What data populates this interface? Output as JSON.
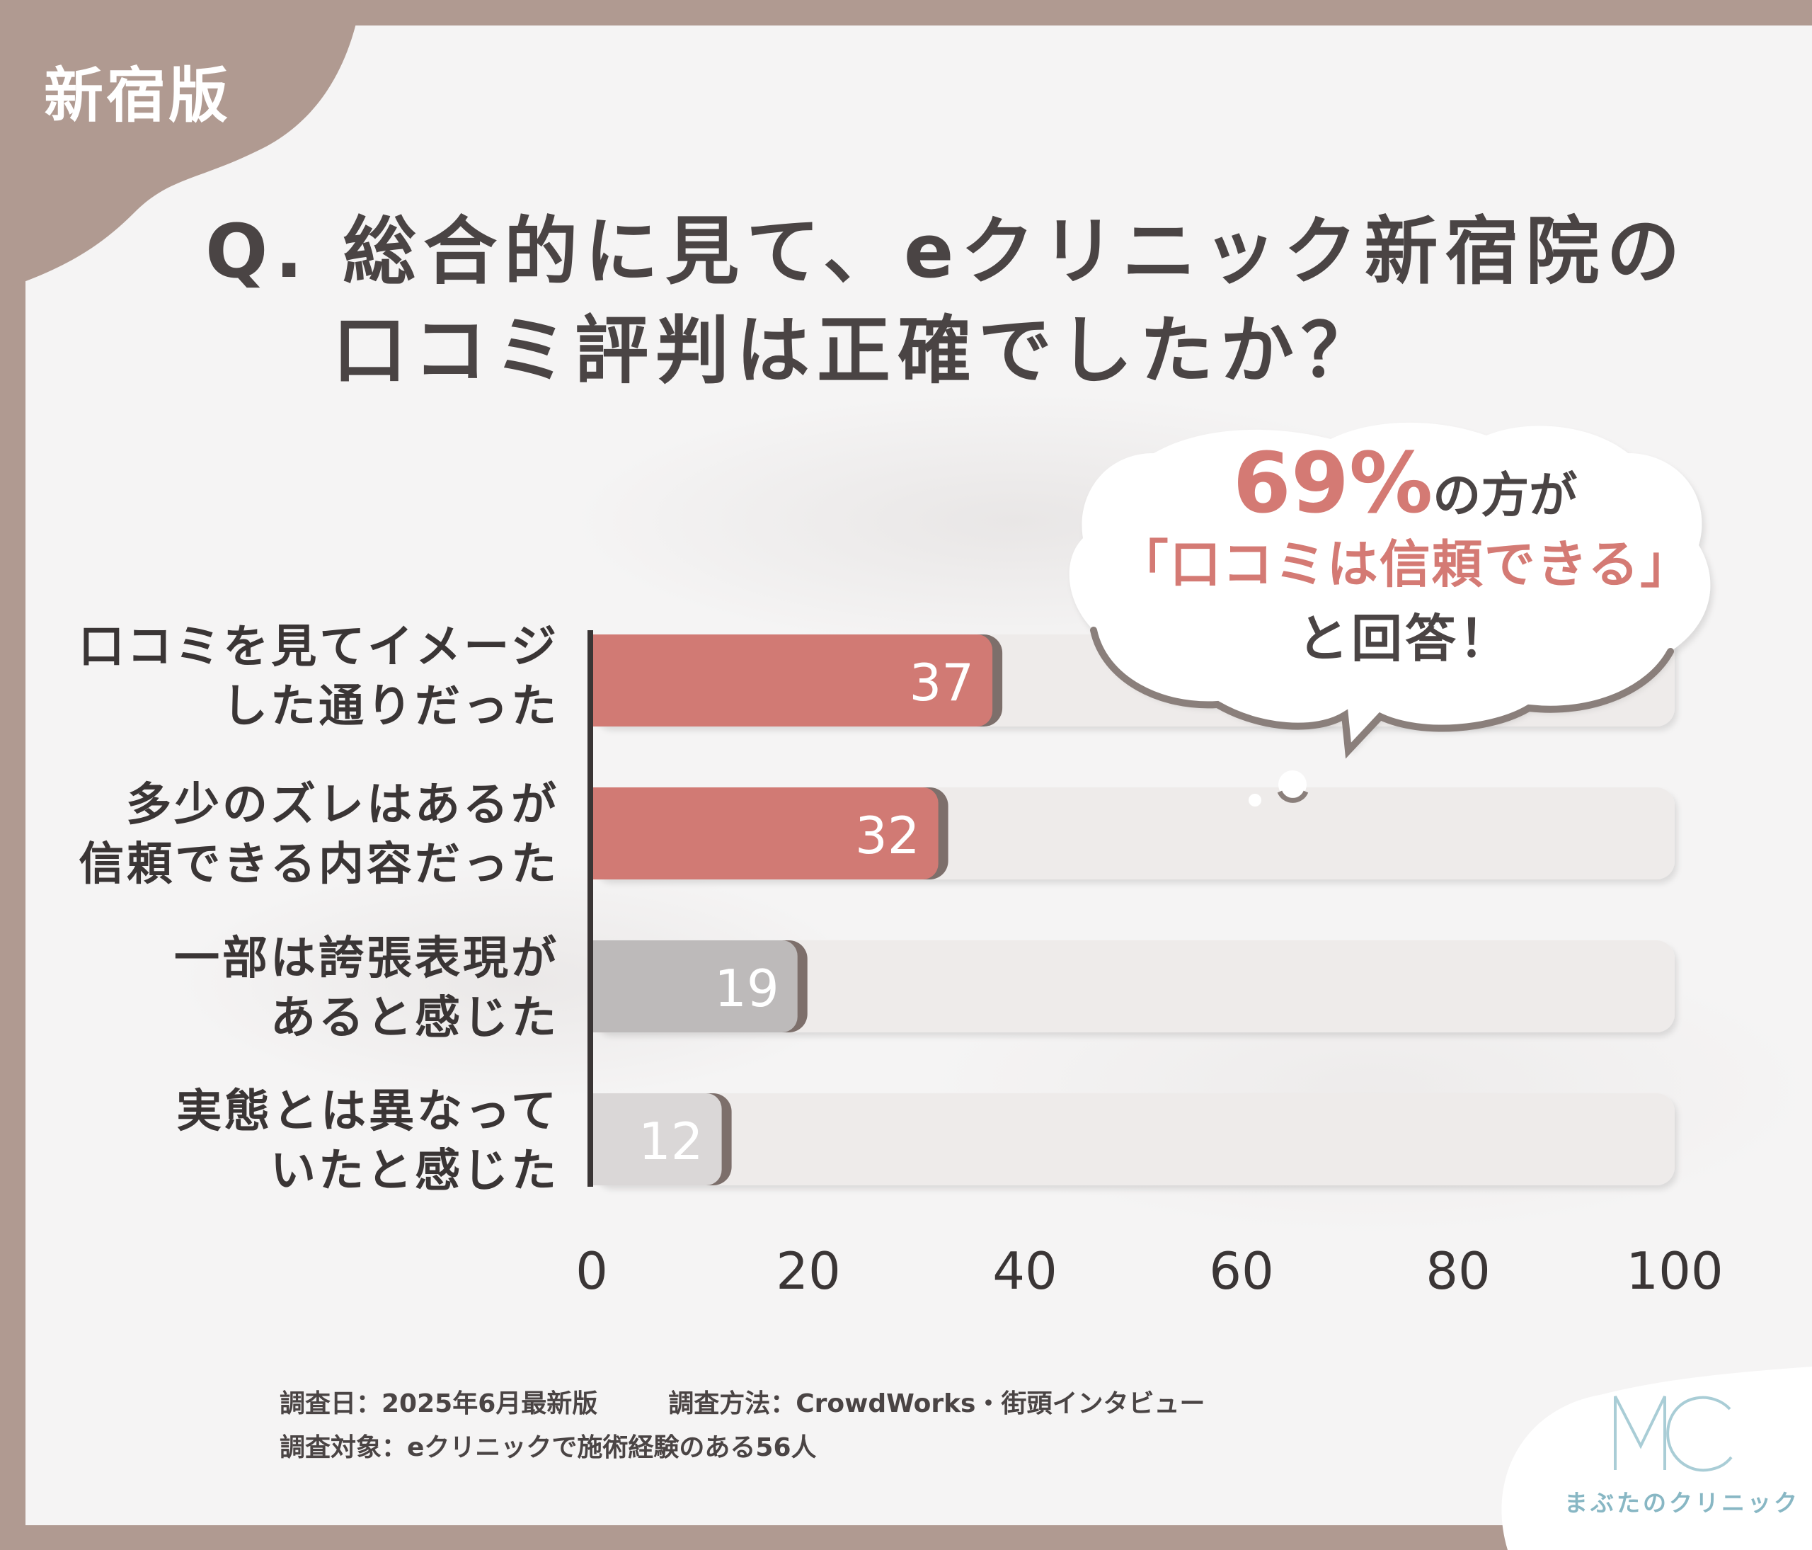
{
  "edition_tag": "新宿版",
  "title": {
    "line1": "Q. 総合的に見て、eクリニック新宿院の",
    "line2": "口コミ評判は正確でしたか？"
  },
  "colors": {
    "frame": "#b09a91",
    "card": "#f5f4f4",
    "bar_highlight": "#d17a74",
    "bar_gray": "#bdbaba",
    "bar_light_gray": "#dad7d7",
    "track": "#eeebea",
    "accent_text": "#d47a74"
  },
  "callout": {
    "percent": "69%",
    "line1_suffix": "の方が",
    "line2": "「口コミは信頼できる」",
    "line3": "と回答！"
  },
  "chart_data": {
    "type": "bar",
    "orientation": "horizontal",
    "categories": [
      [
        "口コミを見てイメージ",
        "した通りだった"
      ],
      [
        "多少のズレはあるが",
        "信頼できる内容だった"
      ],
      [
        "一部は誇張表現が",
        "あると感じた"
      ],
      [
        "実態とは異なって",
        "いたと感じた"
      ]
    ],
    "values": [
      37,
      32,
      19,
      12
    ],
    "value_labels": [
      "37",
      "32",
      "19",
      "12"
    ],
    "bar_colors": [
      "#d17a74",
      "#d17a74",
      "#bdbaba",
      "#dad7d7"
    ],
    "xlim": [
      0,
      100
    ],
    "xticks": [
      0,
      20,
      40,
      60,
      80,
      100
    ],
    "xtick_labels": [
      "0",
      "20",
      "40",
      "60",
      "80",
      "100"
    ],
    "grid": false,
    "legend": "none"
  },
  "footnotes": {
    "date": "調査日：2025年6月最新版",
    "method": "調査方法：CrowdWorks・街頭インタビュー",
    "target": "調査対象：eクリニックで施術経験のある56人"
  },
  "logo": {
    "mark": "MC",
    "name": "まぶたのクリニック"
  }
}
